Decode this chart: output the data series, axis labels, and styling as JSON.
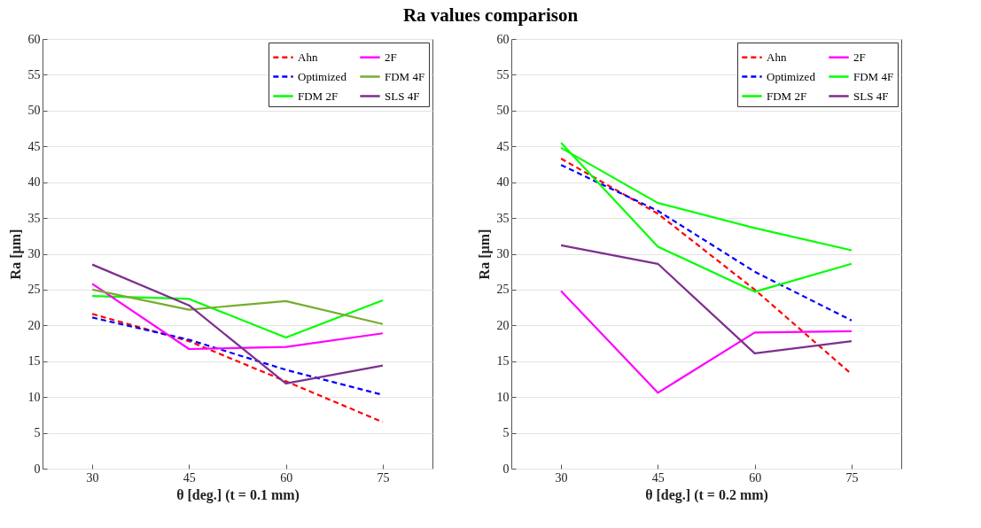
{
  "chart_data": [
    {
      "type": "line",
      "title": "Ra values comparison",
      "xlabel": "θ [deg.] (t = 0.1 mm)",
      "ylabel": "Ra [µm]",
      "x": [
        30,
        45,
        60,
        75
      ],
      "xlim": [
        22.3,
        82.7
      ],
      "xticks": [
        30,
        45,
        60,
        75
      ],
      "ylim": [
        0,
        60
      ],
      "yticks": [
        0,
        5,
        10,
        15,
        20,
        25,
        30,
        35,
        40,
        45,
        50,
        55,
        60
      ],
      "grid": "y",
      "legend": "top right",
      "series": [
        {
          "name": "Ahn",
          "color": "#ff0000",
          "line_style": "dashed",
          "values": [
            21.6,
            17.8,
            12.2,
            6.5
          ]
        },
        {
          "name": "Optimized",
          "color": "#0000ff",
          "line_style": "dashed",
          "values": [
            21.1,
            18.0,
            13.8,
            10.3
          ]
        },
        {
          "name": "FDM 2F",
          "color": "#00ff00",
          "line_style": "solid",
          "values": [
            24.1,
            23.7,
            18.3,
            23.5
          ]
        },
        {
          "name": "2F",
          "color": "#ff00ff",
          "line_style": "solid",
          "values": [
            25.8,
            16.7,
            17.0,
            18.9
          ]
        },
        {
          "name": "FDM 4F",
          "color": "#77ac30",
          "line_style": "solid",
          "values": [
            25.0,
            22.2,
            23.4,
            20.2
          ]
        },
        {
          "name": "SLS 4F",
          "color": "#7e2f8e",
          "line_style": "solid",
          "values": [
            28.5,
            22.8,
            11.9,
            14.4
          ]
        }
      ]
    },
    {
      "type": "line",
      "xlabel": "θ [deg.] (t = 0.2 mm)",
      "ylabel": "Ra [µm]",
      "x": [
        30,
        45,
        60,
        75
      ],
      "xlim": [
        22.3,
        82.7
      ],
      "xticks": [
        30,
        45,
        60,
        75
      ],
      "ylim": [
        0,
        60
      ],
      "yticks": [
        0,
        5,
        10,
        15,
        20,
        25,
        30,
        35,
        40,
        45,
        50,
        55,
        60
      ],
      "grid": "y",
      "legend": "top right",
      "series": [
        {
          "name": "Ahn",
          "color": "#ff0000",
          "line_style": "dashed",
          "values": [
            43.3,
            35.6,
            25.0,
            13.2
          ]
        },
        {
          "name": "Optimized",
          "color": "#0000ff",
          "line_style": "dashed",
          "values": [
            42.4,
            36.0,
            27.5,
            20.7
          ]
        },
        {
          "name": "FDM 2F",
          "color": "#00ff00",
          "line_style": "solid",
          "values": [
            45.5,
            31.0,
            24.7,
            28.6
          ]
        },
        {
          "name": "2F",
          "color": "#ff00ff",
          "line_style": "solid",
          "values": [
            24.8,
            10.6,
            19.0,
            19.2
          ]
        },
        {
          "name": "FDM 4F",
          "color": "#00ff00",
          "line_style": "solid",
          "values": [
            44.8,
            37.1,
            33.6,
            30.5
          ]
        },
        {
          "name": "SLS 4F",
          "color": "#7e2f8e",
          "line_style": "solid",
          "values": [
            31.2,
            28.6,
            16.1,
            17.8
          ]
        }
      ]
    }
  ]
}
